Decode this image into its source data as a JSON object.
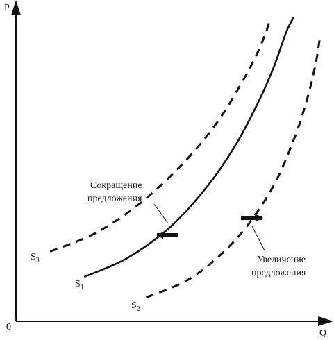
{
  "chart_data": {
    "type": "line",
    "xlabel": "Q",
    "ylabel": "P",
    "origin_label": "0",
    "xlim": [
      0,
      100
    ],
    "ylim": [
      0,
      100
    ],
    "series": [
      {
        "name": "S",
        "subscript": "1",
        "style": "solid",
        "x": [
          22,
          36,
          50,
          62,
          71,
          78,
          83,
          87,
          89.5
        ],
        "y": [
          14,
          20,
          30,
          43,
          56,
          69,
          80,
          91,
          96
        ]
      },
      {
        "name": "S",
        "subscript": "3",
        "style": "dashed",
        "x": [
          11,
          26,
          41,
          55,
          65,
          72,
          77,
          80.5,
          82
        ],
        "y": [
          22,
          28,
          38,
          51,
          63,
          74,
          83,
          91,
          96
        ]
      },
      {
        "name": "S",
        "subscript": "2",
        "style": "dashed",
        "x": [
          42,
          57,
          71,
          82,
          89,
          93.5,
          96.5,
          98
        ],
        "y": [
          7.5,
          14,
          26,
          41,
          56,
          69,
          81,
          90
        ]
      }
    ],
    "annotations": {
      "decrease": {
        "line1": "Сокращение",
        "line2": "предложения",
        "direction": "left"
      },
      "increase": {
        "line1": "Увеличение",
        "line2": "предложения",
        "direction": "right"
      }
    },
    "grid": false,
    "legend": "none"
  }
}
